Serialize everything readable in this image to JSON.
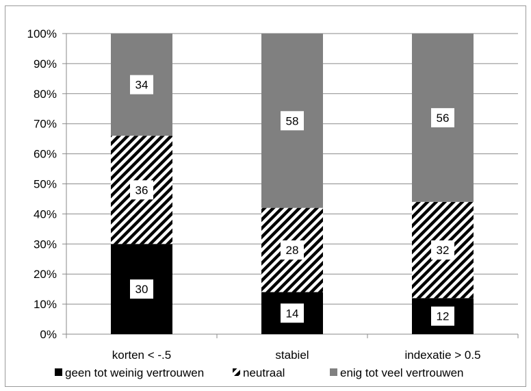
{
  "chart_data": {
    "type": "bar",
    "stacked": true,
    "normalized_percent": true,
    "categories": [
      "korten < -.5",
      "stabiel",
      "indexatie > 0.5"
    ],
    "series": [
      {
        "name": "geen tot weinig vertrouwen",
        "values": [
          30,
          14,
          12
        ],
        "color": "#000000",
        "pattern": "solid"
      },
      {
        "name": "neutraal",
        "values": [
          36,
          28,
          32
        ],
        "color": "#000000",
        "pattern": "diagonal-hatch"
      },
      {
        "name": "enig tot veel vertrouwen",
        "values": [
          34,
          58,
          56
        ],
        "color": "#808080",
        "pattern": "solid"
      }
    ],
    "y_ticks": [
      "0%",
      "10%",
      "20%",
      "30%",
      "40%",
      "50%",
      "60%",
      "70%",
      "80%",
      "90%",
      "100%"
    ],
    "ylim": [
      0,
      100
    ],
    "grid": true,
    "legend_position": "bottom",
    "data_labels": true
  }
}
